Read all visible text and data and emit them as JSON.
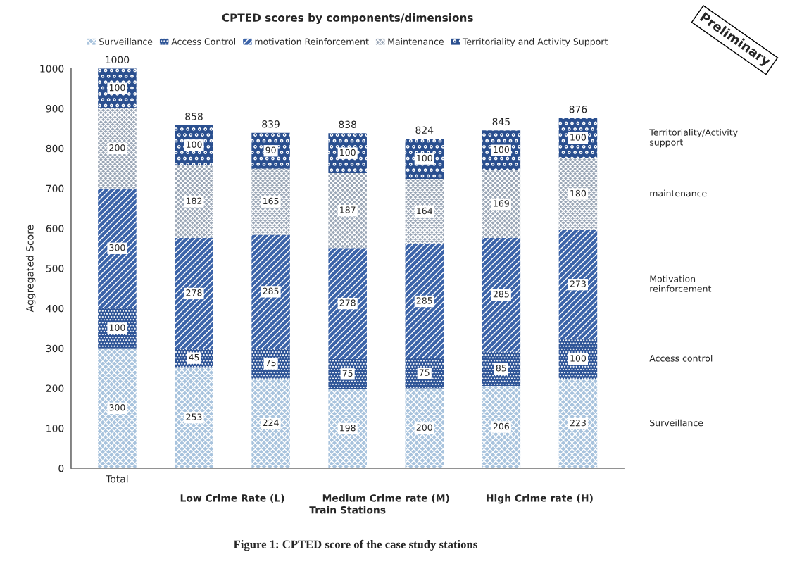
{
  "chart_data": {
    "type": "bar",
    "stacked": true,
    "title": "CPTED scores by components/dimensions",
    "xlabel": "Train Stations",
    "ylabel": "Aggregated Score",
    "categories": [
      "Total",
      null,
      null,
      null,
      null,
      null,
      null
    ],
    "series": [
      {
        "name": "Surveillance",
        "color": "#a8c3dd",
        "values": [
          300,
          253,
          224,
          198,
          200,
          206,
          223
        ]
      },
      {
        "name": "Access Control",
        "color": "#2f5597",
        "values": [
          100,
          45,
          75,
          75,
          75,
          85,
          100
        ]
      },
      {
        "name": "motivation Reinforcement",
        "color": "#3b63a8",
        "values": [
          300,
          278,
          285,
          278,
          285,
          285,
          273
        ]
      },
      {
        "name": "Maintenance",
        "color": "#9aa6b6",
        "values": [
          200,
          182,
          165,
          187,
          164,
          169,
          180
        ]
      },
      {
        "name": "Territoriality and Activity Support",
        "color": "#2a4f8f",
        "values": [
          100,
          100,
          90,
          100,
          100,
          100,
          100
        ]
      }
    ],
    "totals": [
      "1000",
      "858",
      "839",
      "838",
      "824",
      "845",
      "876"
    ],
    "data_labels": true,
    "ylim": [
      0,
      1000
    ],
    "yticks": [
      0,
      100,
      200,
      300,
      400,
      500,
      600,
      700,
      800,
      900,
      1000
    ],
    "grid": false,
    "legend": "top",
    "annotations": [
      "Surveillance",
      "Access control",
      "Motivation\nreinforcement",
      "maintenance",
      "Territoriality/Activity\nsupport",
      "Low Crime Rate (L)",
      "Medium Crime rate (M)",
      "High Crime rate (H)",
      "Figure 1: CPTED score of the case study stations",
      "Preliminary"
    ]
  }
}
